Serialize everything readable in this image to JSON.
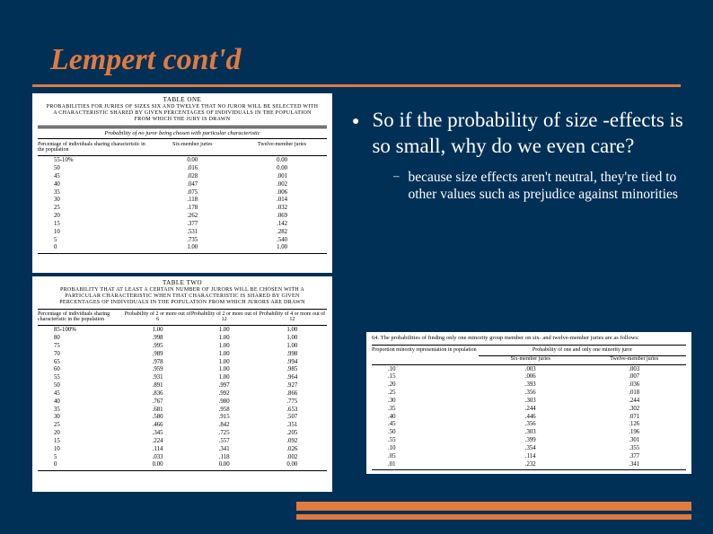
{
  "title": "Lempert cont'd",
  "bullet": {
    "main": "So if the probability of size -effects is so small, why do we even care?",
    "sub": "because size effects aren't neutral, they're tied to other values such as prejudice against minorities"
  },
  "table_one": {
    "label": "TABLE ONE",
    "caption": "PROBABILITIES FOR JURIES OF SIZES SIX AND TWELVE THAT NO JUROR WILL BE SELECTED WITH A CHARACTERISTIC SHARED BY GIVEN PERCENTAGES OF INDIVIDUALS IN THE POPULATION FROM WHICH THE JURY IS DRAWN",
    "subcaption": "Probability of no juror being chosen with particular characteristic",
    "head_left": "Percentage of individuals sharing characteristic in the population",
    "head_c1": "Six-member juries",
    "head_c2": "Twelve-member juries",
    "rows": [
      [
        "55-10%",
        "0.00",
        "0.00"
      ],
      [
        "50",
        ".016",
        "0.00"
      ],
      [
        "45",
        ".028",
        ".001"
      ],
      [
        "40",
        ".047",
        ".002"
      ],
      [
        "35",
        ".075",
        ".006"
      ],
      [
        "30",
        ".118",
        ".014"
      ],
      [
        "25",
        ".178",
        ".032"
      ],
      [
        "20",
        ".262",
        ".069"
      ],
      [
        "15",
        ".377",
        ".142"
      ],
      [
        "10",
        ".531",
        ".282"
      ],
      [
        "5",
        ".735",
        ".540"
      ],
      [
        "0",
        "1.00",
        "1.00"
      ]
    ]
  },
  "table_two": {
    "label": "TABLE TWO",
    "caption": "PROBABILITY THAT AT LEAST A CERTAIN NUMBER OF JURORS WILL BE CHOSEN WITH A PARTICULAR CHARACTERISTIC WHEN THAT CHARACTERISTIC IS SHARED BY GIVEN PERCENTAGES OF INDIVIDUALS IN THE POPULATION FROM WHICH JURORS ARE DRAWN",
    "head_left": "Percentage of individuals sharing characteristic in the population",
    "head_c1": "Probability of 2 or more out of 6",
    "head_c2": "Probability of 2 or more out of 12",
    "head_c3": "Probability of 4 or more out of 12",
    "rows": [
      [
        "85-100%",
        "1.00",
        "1.00",
        "1.00"
      ],
      [
        "80",
        ".998",
        "1.00",
        "1.00"
      ],
      [
        "75",
        ".995",
        "1.00",
        "1.00"
      ],
      [
        "70",
        ".989",
        "1.00",
        ".998"
      ],
      [
        "65",
        ".978",
        "1.00",
        ".994"
      ],
      [
        "60",
        ".959",
        "1.00",
        ".985"
      ],
      [
        "55",
        ".931",
        "1.00",
        ".964"
      ],
      [
        "50",
        ".891",
        ".997",
        ".927"
      ],
      [
        "45",
        ".836",
        ".992",
        ".866"
      ],
      [
        "40",
        ".767",
        ".980",
        ".775"
      ],
      [
        "35",
        ".681",
        ".958",
        ".653"
      ],
      [
        "30",
        ".580",
        ".915",
        ".507"
      ],
      [
        "25",
        ".466",
        ".842",
        ".351"
      ],
      [
        "20",
        ".345",
        ".725",
        ".205"
      ],
      [
        "15",
        ".224",
        ".557",
        ".092"
      ],
      [
        "10",
        ".114",
        ".341",
        ".026"
      ],
      [
        "5",
        ".033",
        ".118",
        ".002"
      ],
      [
        "0",
        "0.00",
        "0.00",
        "0.00"
      ]
    ]
  },
  "table_three": {
    "caption": "64. The probabilities of finding only one minority group member on six- and twelve-member juries are as follows:",
    "head_left": "Proportion minority representation in population",
    "head_right": "Probability of one and only one minority juror",
    "head_c1": "Six-member juries",
    "head_c2": "Twelve-member juries",
    "rows": [
      [
        ".10",
        ".003",
        ".003"
      ],
      [
        ".15",
        ".006",
        ".007"
      ],
      [
        ".20",
        ".393",
        ".036"
      ],
      [
        ".25",
        ".356",
        ".018"
      ],
      [
        ".30",
        ".303",
        ".244"
      ],
      [
        ".35",
        ".244",
        ".302"
      ],
      [
        ".40",
        ".446",
        ".071"
      ],
      [
        ".45",
        ".356",
        ".126"
      ],
      [
        ".50",
        ".303",
        ".196"
      ],
      [
        ".55",
        ".399",
        ".301"
      ],
      [
        ".10",
        ".354",
        ".355"
      ],
      [
        ".05",
        ".114",
        ".377"
      ],
      [
        ".01",
        ".232",
        ".341"
      ]
    ]
  },
  "colors": {
    "background": "#003056",
    "accent": "#e07a3f",
    "text_light": "#ffffff",
    "table_bg": "#ffffff",
    "table_text": "#000000"
  }
}
